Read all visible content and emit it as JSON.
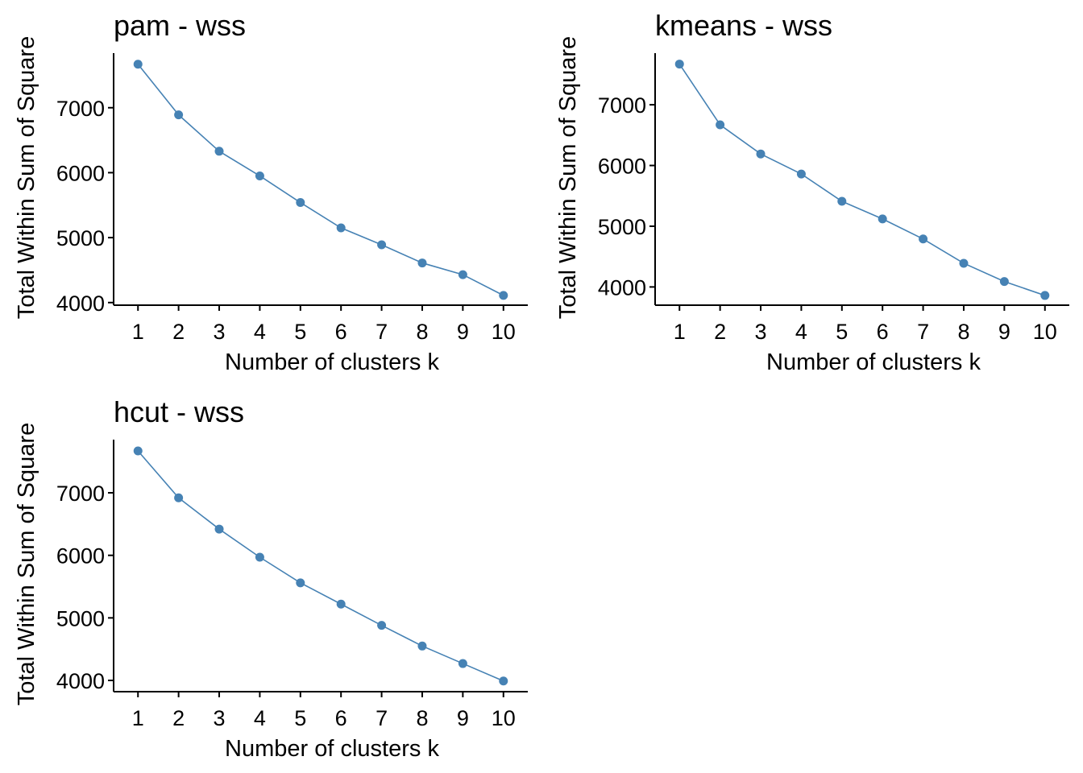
{
  "colors": {
    "series": "#4682B4",
    "axis": "#000000",
    "background": "#ffffff"
  },
  "chart_data": [
    {
      "type": "line",
      "title": "pam - wss",
      "xlabel": "Number of clusters k",
      "ylabel": "Total Within Sum of Square",
      "x": [
        1,
        2,
        3,
        4,
        5,
        6,
        7,
        8,
        9,
        10
      ],
      "x_tick_labels": [
        "1",
        "2",
        "3",
        "4",
        "5",
        "6",
        "7",
        "8",
        "9",
        "10"
      ],
      "y_ticks": [
        4000,
        5000,
        6000,
        7000
      ],
      "y_tick_labels": [
        "4000",
        "5000",
        "6000",
        "7000"
      ],
      "ylim": [
        3960,
        7840
      ],
      "xlim": [
        0.4,
        10.6
      ],
      "grid": false,
      "series": [
        {
          "values": [
            7670,
            6890,
            6330,
            5950,
            5540,
            5150,
            4890,
            4610,
            4430,
            4110
          ]
        }
      ]
    },
    {
      "type": "line",
      "title": "kmeans - wss",
      "xlabel": "Number of clusters k",
      "ylabel": "Total Within Sum of Square",
      "x": [
        1,
        2,
        3,
        4,
        5,
        6,
        7,
        8,
        9,
        10
      ],
      "x_tick_labels": [
        "1",
        "2",
        "3",
        "4",
        "5",
        "6",
        "7",
        "8",
        "9",
        "10"
      ],
      "y_ticks": [
        4000,
        5000,
        6000,
        7000
      ],
      "y_tick_labels": [
        "4000",
        "5000",
        "6000",
        "7000"
      ],
      "ylim": [
        3700,
        7850
      ],
      "xlim": [
        0.4,
        10.6
      ],
      "grid": false,
      "series": [
        {
          "values": [
            7670,
            6670,
            6190,
            5860,
            5410,
            5120,
            4790,
            4390,
            4090,
            3860
          ]
        }
      ]
    },
    {
      "type": "line",
      "title": "hcut - wss",
      "xlabel": "Number of clusters k",
      "ylabel": "Total Within Sum of Square",
      "x": [
        1,
        2,
        3,
        4,
        5,
        6,
        7,
        8,
        9,
        10
      ],
      "x_tick_labels": [
        "1",
        "2",
        "3",
        "4",
        "5",
        "6",
        "7",
        "8",
        "9",
        "10"
      ],
      "y_ticks": [
        4000,
        5000,
        6000,
        7000
      ],
      "y_tick_labels": [
        "4000",
        "5000",
        "6000",
        "7000"
      ],
      "ylim": [
        3820,
        7850
      ],
      "xlim": [
        0.4,
        10.6
      ],
      "grid": false,
      "series": [
        {
          "values": [
            7670,
            6920,
            6420,
            5970,
            5560,
            5220,
            4880,
            4550,
            4270,
            3990
          ]
        }
      ]
    }
  ]
}
